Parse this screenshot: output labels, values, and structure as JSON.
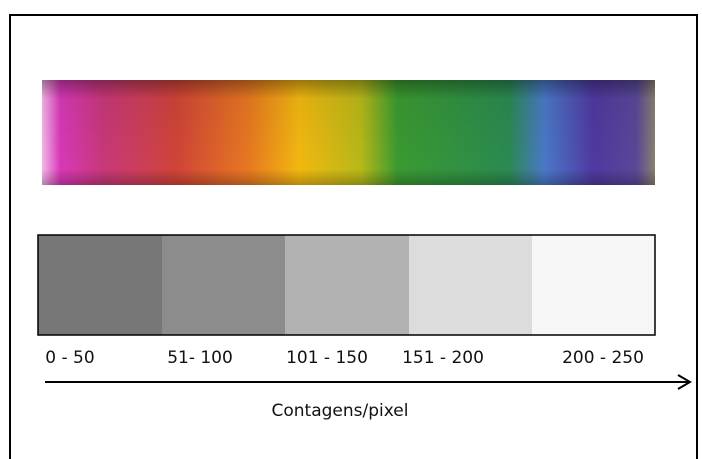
{
  "ranges": [
    "0 - 50",
    "51- 100",
    "101 - 150",
    "151 - 200",
    "200 - 250"
  ],
  "axis_label": "Contagens/pixel"
}
